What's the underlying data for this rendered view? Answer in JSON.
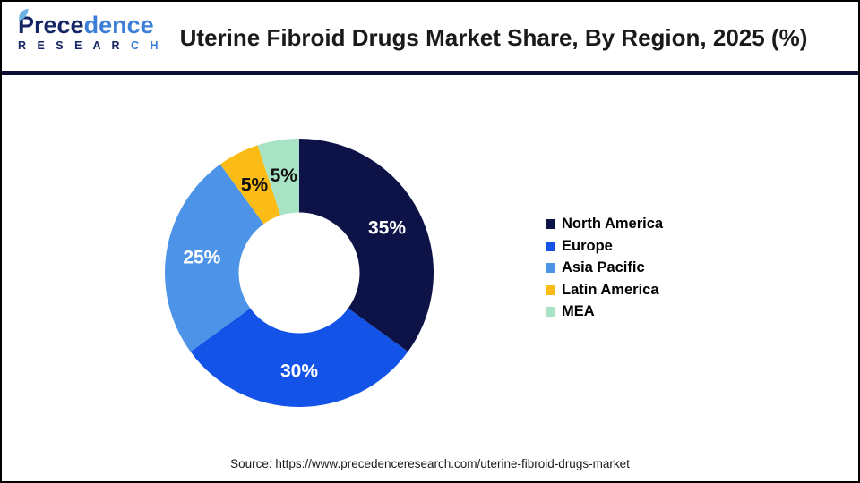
{
  "header": {
    "logo": {
      "brand_dark": "Prece",
      "brand_light": "dence",
      "sub_dark": "R E S E A R",
      "sub_light": " C H"
    },
    "title": "Uterine Fibroid Drugs Market Share, By Region, 2025 (%)"
  },
  "chart_data": {
    "type": "pie",
    "subtype": "donut",
    "title": "Uterine Fibroid Drugs Market Share, By Region, 2025 (%)",
    "start_angle_deg": 0,
    "direction": "clockwise",
    "inner_radius_ratio": 0.45,
    "legend_position": "right",
    "unit": "%",
    "slices": [
      {
        "label": "North America",
        "value": 35,
        "display": "35%",
        "color": "#0e1347",
        "label_color": "#ffffff"
      },
      {
        "label": "Europe",
        "value": 30,
        "display": "30%",
        "color": "#1453e8",
        "label_color": "#ffffff"
      },
      {
        "label": "Asia Pacific",
        "value": 25,
        "display": "25%",
        "color": "#4d94e8",
        "label_color": "#ffffff"
      },
      {
        "label": "Latin America",
        "value": 5,
        "display": "5%",
        "color": "#fbbc18",
        "label_color": "#111111"
      },
      {
        "label": "MEA",
        "value": 5,
        "display": "5%",
        "color": "#a8e3c6",
        "label_color": "#111111"
      }
    ]
  },
  "footer": {
    "source": "Source: https://www.precedenceresearch.com/uterine-fibroid-drugs-market"
  }
}
